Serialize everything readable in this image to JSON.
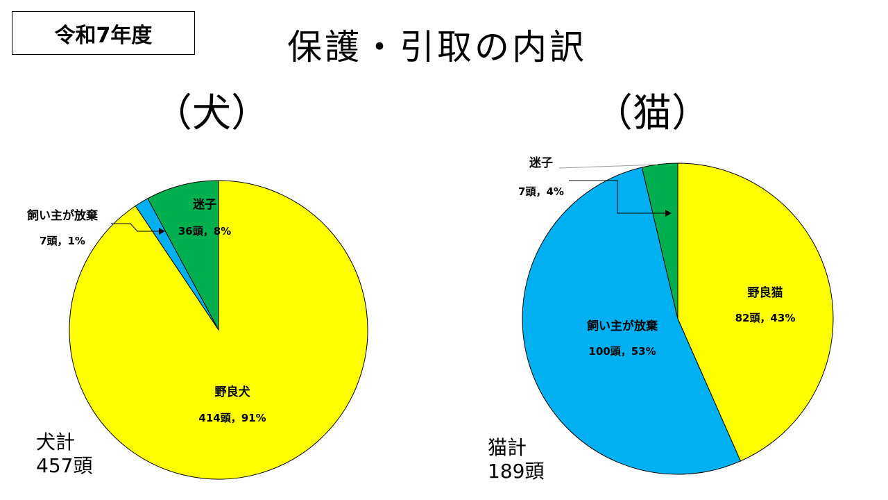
{
  "header": {
    "year": "令和7年度",
    "title": "保護・引取の内訳"
  },
  "chart_data": [
    {
      "type": "pie",
      "title": "（犬）",
      "slices": [
        {
          "label": "迷子",
          "count_label": "36頭，8%",
          "value": 36,
          "percent": 8,
          "color": "#00b050"
        },
        {
          "label": "野良犬",
          "count_label": "414頭，91%",
          "value": 414,
          "percent": 91,
          "color": "#ffff00"
        },
        {
          "label": "飼い主が放棄",
          "count_label": "7頭，1%",
          "value": 7,
          "percent": 1,
          "color": "#00b0f0"
        }
      ],
      "total_label": "犬計",
      "total_value": "457頭"
    },
    {
      "type": "pie",
      "title": "（猫）",
      "slices": [
        {
          "label": "野良猫",
          "count_label": "82頭，43%",
          "value": 82,
          "percent": 43,
          "color": "#ffff00"
        },
        {
          "label": "飼い主が放棄",
          "count_label": "100頭，53%",
          "value": 100,
          "percent": 53,
          "color": "#00b0f0"
        },
        {
          "label": "迷子",
          "count_label": "7頭，4%",
          "value": 7,
          "percent": 4,
          "color": "#00b050"
        }
      ],
      "total_label": "猫計",
      "total_value": "189頭"
    }
  ]
}
